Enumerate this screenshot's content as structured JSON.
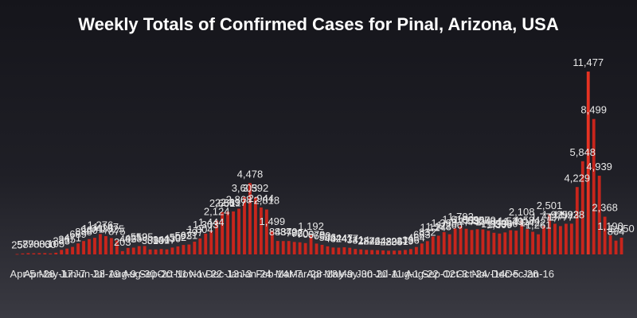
{
  "chart_data": {
    "type": "bar",
    "title": "Weekly Totals of Confirmed Cases for Pinal, Arizona, USA",
    "bar_color": "#c8251c",
    "highlight_color": "#e63222",
    "grid": false,
    "legend": "none",
    "x_tick_labels": [
      "Apr-5",
      "Apr-26",
      "May-17",
      "Jun-7",
      "Jun-28",
      "Jul-19",
      "Aug-9",
      "Aug-30",
      "Sep-20",
      "Oct-11",
      "Nov-1",
      "Nov-22",
      "Dec-13",
      "Jan-3",
      "Jan-24",
      "Feb-14",
      "Mar-7",
      "Mar-28",
      "Apr-18",
      "May-9",
      "May-30",
      "Jun-20",
      "Jul-11",
      "Aug-1",
      "Aug-22",
      "Sep-12",
      "Oct-3",
      "Oct-24",
      "Nov-14",
      "Dec-5",
      "Dec-26",
      "Jan-16"
    ],
    "values": [
      25,
      58,
      79,
      70,
      80,
      80,
      60,
      105,
      283,
      365,
      471,
      689,
      838,
      960,
      1043,
      1276,
      1147,
      1025,
      875,
      203,
      405,
      425,
      519,
      525,
      309,
      310,
      340,
      317,
      430,
      502,
      593,
      621,
      797,
      1004,
      1303,
      1444,
      2124,
      2651,
      2681,
      2697,
      2868,
      3603,
      4478,
      3592,
      2944,
      2818,
      1499,
      843,
      837,
      840,
      782,
      760,
      709,
      1192,
      679,
      600,
      506,
      432,
      424,
      447,
      417,
      341,
      314,
      284,
      274,
      264,
      248,
      230,
      235,
      241,
      279,
      336,
      464,
      683,
      832,
      1124,
      1173,
      1398,
      1266,
      1618,
      1792,
      1609,
      1532,
      1580,
      1570,
      1484,
      1359,
      1309,
      1380,
      1521,
      1491,
      2108,
      1584,
      1422,
      1261,
      1773,
      2501,
      1925,
      1777,
      1923,
      1928,
      4229,
      5848,
      11477,
      8499,
      4939,
      2368,
      1190,
      864,
      1050
    ]
  }
}
